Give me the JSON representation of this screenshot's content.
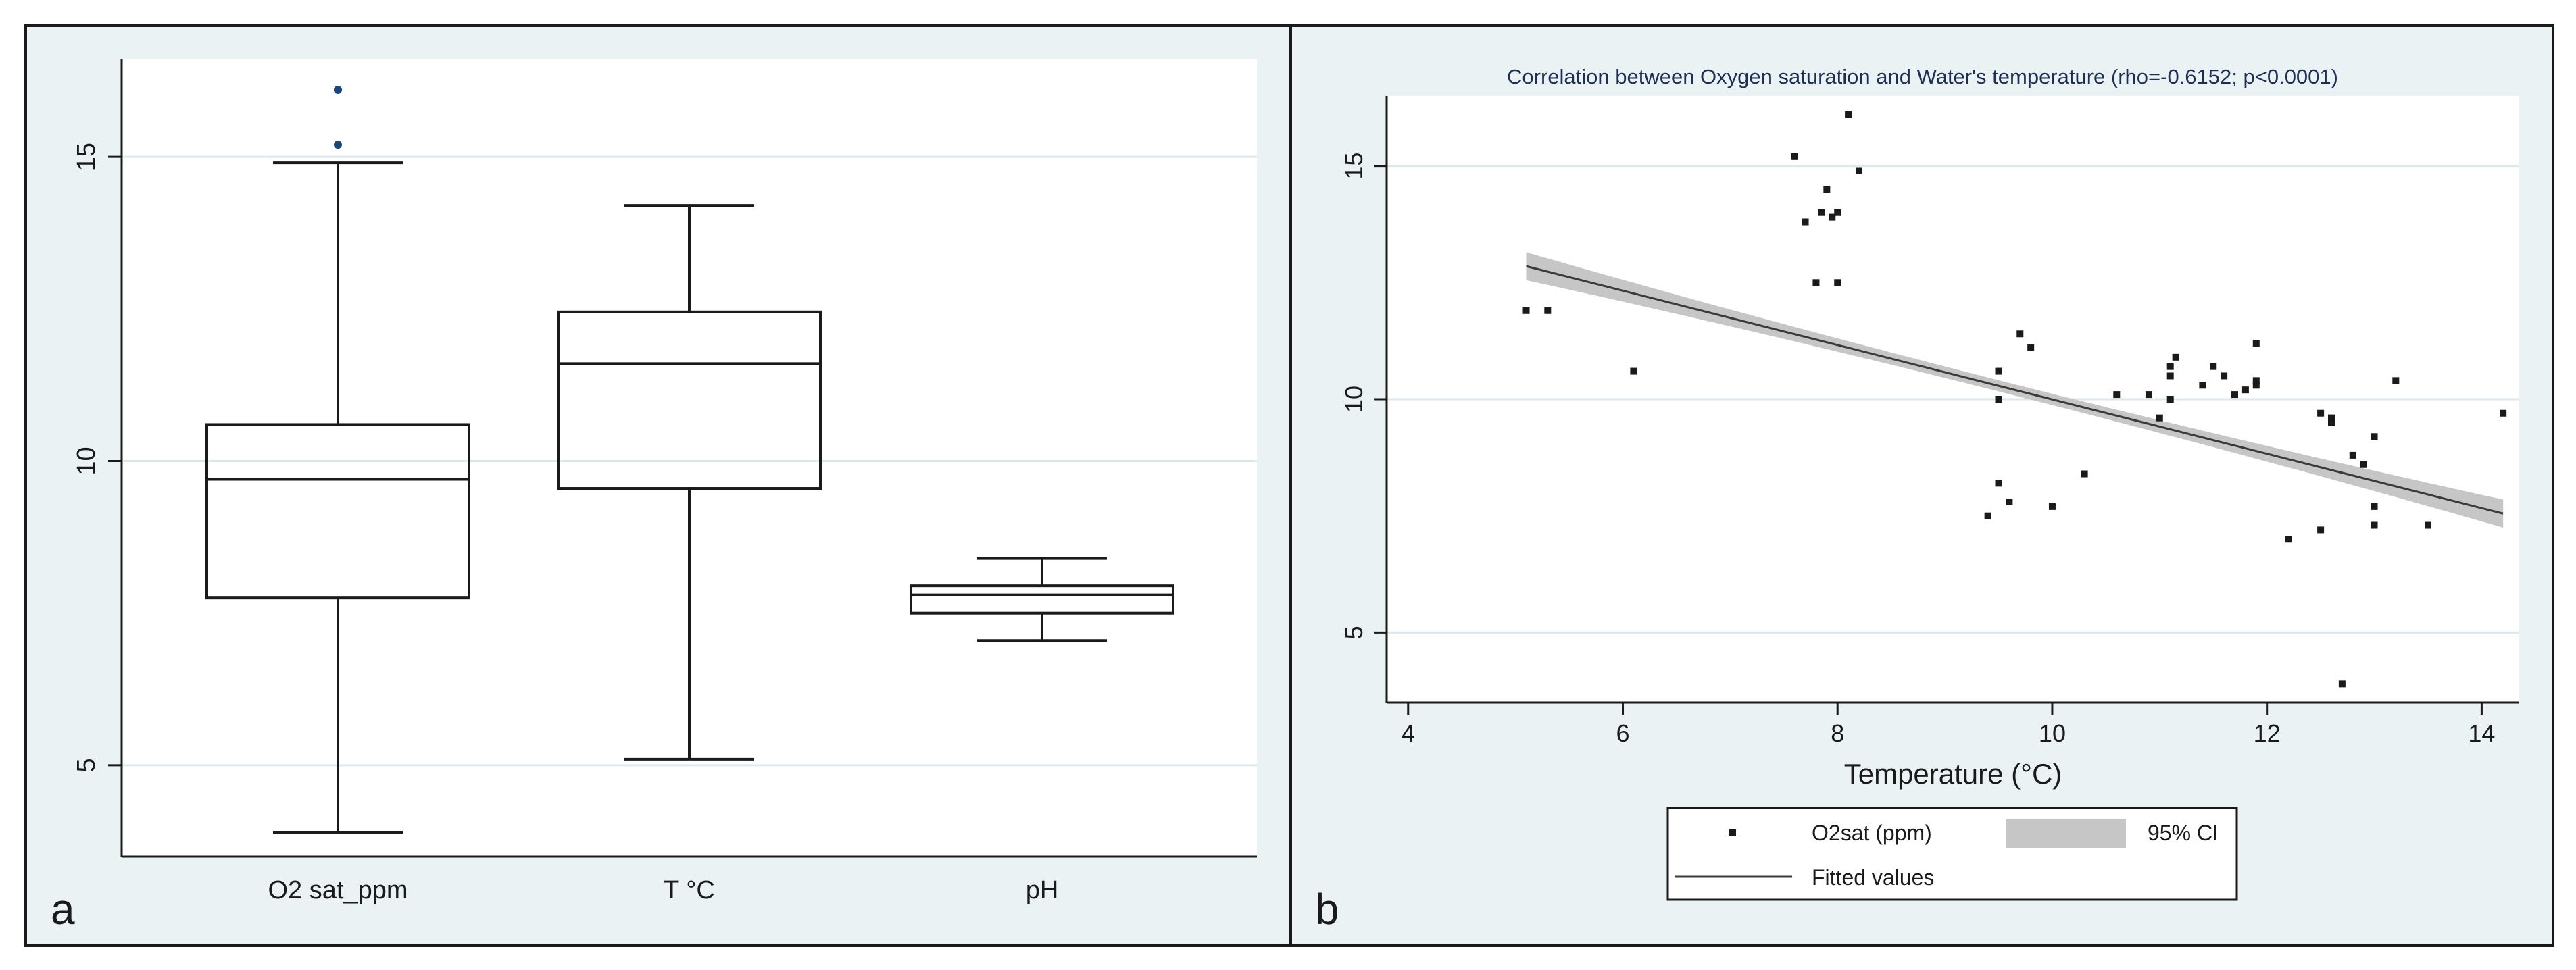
{
  "colors": {
    "frame_border": "#1a1a1a",
    "panel_bg": "#eaf2f3",
    "plot_bg": "#ffffff",
    "grid": "#dce9ec",
    "line": "#1a1a1a",
    "outlier": "#1a4876",
    "ci_band": "#c6c6c6",
    "fit": "#3a3a3a",
    "title_text": "#1e2f55",
    "text": "#1a1a1a"
  },
  "panel_a": {
    "label": "a",
    "chart_data": {
      "type": "box",
      "title": "",
      "ylabel": "",
      "ylim": [
        3.5,
        16.6
      ],
      "yticks": [
        5,
        10,
        15
      ],
      "ytick_labels": [
        "5",
        "10",
        "15"
      ],
      "grid": true,
      "categories": [
        "O2 sat_ppm",
        "T °C",
        "pH"
      ],
      "boxes": [
        {
          "name": "O2 sat_ppm",
          "whisker_low": 3.9,
          "q1": 7.75,
          "median": 9.7,
          "q3": 10.6,
          "whisker_high": 14.9,
          "outliers": [
            15.2,
            16.1
          ]
        },
        {
          "name": "T °C",
          "whisker_low": 5.1,
          "q1": 9.55,
          "median": 11.6,
          "q3": 12.45,
          "whisker_high": 14.2,
          "outliers": []
        },
        {
          "name": "pH",
          "whisker_low": 7.05,
          "q1": 7.5,
          "median": 7.8,
          "q3": 7.95,
          "whisker_high": 8.4,
          "outliers": []
        }
      ]
    }
  },
  "panel_b": {
    "label": "b",
    "chart_data": {
      "type": "scatter",
      "title": "Correlation between Oxygen saturation and Water's temperature (rho=-0.6152; p<0.0001)",
      "xlabel": "Temperature (°C)",
      "ylabel": "",
      "xlim": [
        3.8,
        14.35
      ],
      "ylim": [
        3.5,
        16.5
      ],
      "xticks": [
        4,
        6,
        8,
        10,
        12,
        14
      ],
      "xtick_labels": [
        "4",
        "6",
        "8",
        "10",
        "12",
        "14"
      ],
      "yticks": [
        5,
        10,
        15
      ],
      "ytick_labels": [
        "5",
        "10",
        "15"
      ],
      "grid": true,
      "legend": {
        "position": "bottom",
        "entries": [
          {
            "label": "O2sat (ppm)",
            "kind": "marker"
          },
          {
            "label": "95% CI",
            "kind": "band"
          },
          {
            "label": "Fitted values",
            "kind": "line"
          }
        ]
      },
      "series": [
        {
          "name": "O2sat (ppm)",
          "points": [
            [
              5.1,
              11.9
            ],
            [
              5.3,
              11.9
            ],
            [
              6.1,
              10.6
            ],
            [
              7.6,
              15.2
            ],
            [
              7.7,
              13.8
            ],
            [
              7.8,
              12.5
            ],
            [
              7.85,
              14.0
            ],
            [
              7.9,
              14.5
            ],
            [
              7.95,
              13.9
            ],
            [
              8.0,
              12.5
            ],
            [
              8.0,
              14.0
            ],
            [
              8.1,
              16.1
            ],
            [
              8.2,
              14.9
            ],
            [
              9.4,
              7.5
            ],
            [
              9.5,
              8.2
            ],
            [
              9.5,
              10.0
            ],
            [
              9.5,
              10.6
            ],
            [
              9.6,
              7.8
            ],
            [
              9.7,
              11.4
            ],
            [
              9.8,
              11.1
            ],
            [
              10.0,
              7.7
            ],
            [
              10.3,
              8.4
            ],
            [
              10.6,
              10.1
            ],
            [
              10.9,
              10.1
            ],
            [
              11.0,
              9.6
            ],
            [
              11.1,
              10.0
            ],
            [
              11.1,
              10.5
            ],
            [
              11.1,
              10.7
            ],
            [
              11.15,
              10.9
            ],
            [
              11.4,
              10.3
            ],
            [
              11.5,
              10.7
            ],
            [
              11.6,
              10.5
            ],
            [
              11.7,
              10.1
            ],
            [
              11.8,
              10.2
            ],
            [
              11.9,
              10.3
            ],
            [
              11.9,
              10.4
            ],
            [
              11.9,
              11.2
            ],
            [
              12.2,
              7.0
            ],
            [
              12.5,
              7.2
            ],
            [
              12.5,
              9.7
            ],
            [
              12.6,
              9.5
            ],
            [
              12.6,
              9.6
            ],
            [
              12.7,
              3.9
            ],
            [
              12.8,
              8.8
            ],
            [
              12.9,
              8.6
            ],
            [
              13.0,
              7.3
            ],
            [
              13.0,
              7.7
            ],
            [
              13.0,
              9.2
            ],
            [
              13.2,
              10.4
            ],
            [
              13.5,
              7.3
            ],
            [
              14.2,
              9.7
            ]
          ]
        }
      ],
      "fit": {
        "name": "Fitted values",
        "x_range": [
          5.1,
          14.2
        ],
        "y_start": 12.85,
        "y_end": 7.55
      },
      "ci": {
        "name": "95% CI",
        "half_width_ends": 0.3,
        "half_width_center": 0.12,
        "center_x": 9.6
      }
    }
  }
}
